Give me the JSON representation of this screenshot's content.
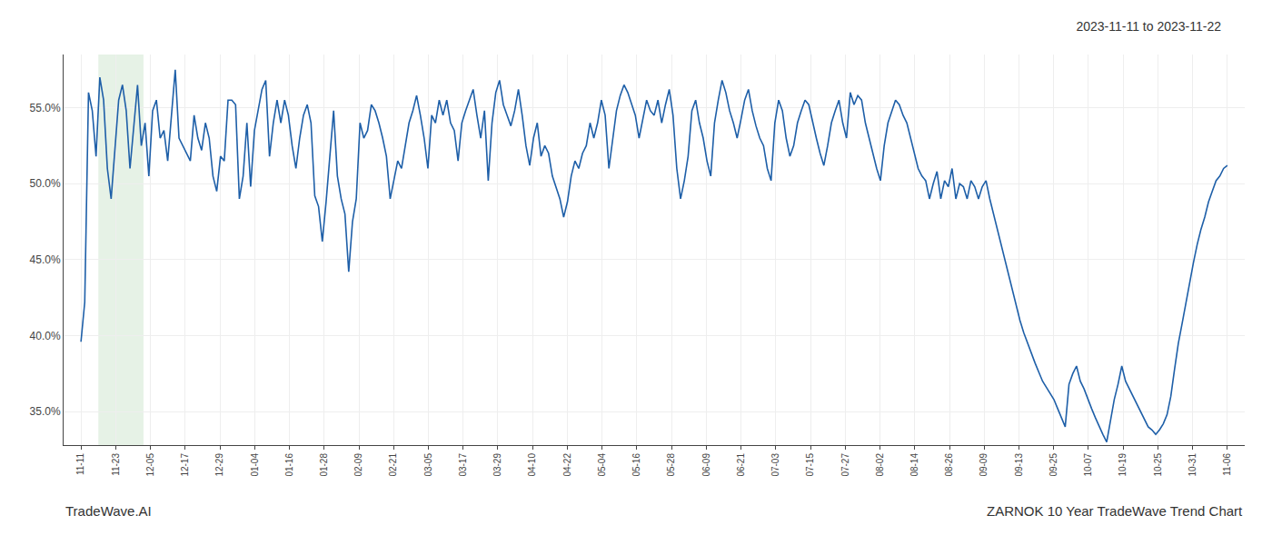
{
  "chart_data": {
    "type": "line",
    "title": "2023-11-11 to 2023-11-22",
    "annotations": [
      {
        "text": "TradeWave.AI"
      },
      {
        "text": "ZARNOK 10 Year TradeWave Trend Chart"
      }
    ],
    "color": "#1e5fa8",
    "grid": true,
    "highlight": {
      "start": 0.5,
      "end": 1.8,
      "color": "#d6ead6"
    },
    "xlim": [
      -0.5,
      33.5
    ],
    "xticks": [
      {
        "value": 0,
        "label": "11-11"
      },
      {
        "value": 1,
        "label": "11-23"
      },
      {
        "value": 2,
        "label": "12-05"
      },
      {
        "value": 3,
        "label": "12-17"
      },
      {
        "value": 4,
        "label": "12-29"
      },
      {
        "value": 5,
        "label": "01-04"
      },
      {
        "value": 6,
        "label": "01-16"
      },
      {
        "value": 7,
        "label": "01-28"
      },
      {
        "value": 8,
        "label": "02-09"
      },
      {
        "value": 9,
        "label": "02-21"
      },
      {
        "value": 10,
        "label": "03-05"
      },
      {
        "value": 11,
        "label": "03-17"
      },
      {
        "value": 12,
        "label": "03-29"
      },
      {
        "value": 13,
        "label": "04-10"
      },
      {
        "value": 14,
        "label": "04-22"
      },
      {
        "value": 15,
        "label": "05-04"
      },
      {
        "value": 16,
        "label": "05-16"
      },
      {
        "value": 17,
        "label": "05-28"
      },
      {
        "value": 18,
        "label": "06-09"
      },
      {
        "value": 19,
        "label": "06-21"
      },
      {
        "value": 20,
        "label": "07-03"
      },
      {
        "value": 21,
        "label": "07-15"
      },
      {
        "value": 22,
        "label": "07-27"
      },
      {
        "value": 23,
        "label": "08-02"
      },
      {
        "value": 24,
        "label": "08-14"
      },
      {
        "value": 25,
        "label": "08-26"
      },
      {
        "value": 26,
        "label": "09-09"
      },
      {
        "value": 27,
        "label": "09-13"
      },
      {
        "value": 28,
        "label": "09-25"
      },
      {
        "value": 29,
        "label": "10-07"
      },
      {
        "value": 30,
        "label": "10-19"
      },
      {
        "value": 31,
        "label": "10-25"
      },
      {
        "value": 32,
        "label": "10-31"
      },
      {
        "value": 33,
        "label": "11-06"
      }
    ],
    "ylim": [
      0.328,
      0.585
    ],
    "yticks": [
      {
        "value": 0.35,
        "label": "35.0%"
      },
      {
        "value": 0.4,
        "label": "40.0%"
      },
      {
        "value": 0.45,
        "label": "45.0%"
      },
      {
        "value": 0.5,
        "label": "50.0%"
      },
      {
        "value": 0.55,
        "label": "55.0%"
      }
    ],
    "values": [
      0.396,
      0.422,
      0.56,
      0.548,
      0.518,
      0.57,
      0.555,
      0.51,
      0.49,
      0.52,
      0.555,
      0.565,
      0.548,
      0.51,
      0.54,
      0.565,
      0.525,
      0.54,
      0.505,
      0.548,
      0.555,
      0.53,
      0.535,
      0.515,
      0.545,
      0.575,
      0.53,
      0.525,
      0.52,
      0.515,
      0.545,
      0.53,
      0.522,
      0.54,
      0.53,
      0.505,
      0.495,
      0.518,
      0.515,
      0.555,
      0.555,
      0.552,
      0.49,
      0.505,
      0.54,
      0.498,
      0.535,
      0.548,
      0.562,
      0.568,
      0.518,
      0.54,
      0.555,
      0.54,
      0.555,
      0.545,
      0.525,
      0.51,
      0.53,
      0.545,
      0.552,
      0.54,
      0.492,
      0.485,
      0.462,
      0.488,
      0.52,
      0.548,
      0.505,
      0.49,
      0.48,
      0.442,
      0.475,
      0.49,
      0.54,
      0.53,
      0.535,
      0.552,
      0.548,
      0.54,
      0.53,
      0.518,
      0.49,
      0.502,
      0.515,
      0.51,
      0.525,
      0.54,
      0.548,
      0.558,
      0.545,
      0.53,
      0.51,
      0.545,
      0.54,
      0.555,
      0.545,
      0.555,
      0.54,
      0.535,
      0.515,
      0.54,
      0.548,
      0.555,
      0.562,
      0.545,
      0.53,
      0.548,
      0.502,
      0.54,
      0.56,
      0.568,
      0.552,
      0.545,
      0.538,
      0.548,
      0.562,
      0.545,
      0.525,
      0.512,
      0.53,
      0.54,
      0.518,
      0.525,
      0.52,
      0.505,
      0.498,
      0.49,
      0.478,
      0.488,
      0.505,
      0.515,
      0.51,
      0.52,
      0.525,
      0.54,
      0.53,
      0.54,
      0.555,
      0.545,
      0.51,
      0.53,
      0.548,
      0.558,
      0.565,
      0.56,
      0.552,
      0.545,
      0.53,
      0.542,
      0.555,
      0.548,
      0.545,
      0.555,
      0.54,
      0.552,
      0.562,
      0.545,
      0.51,
      0.49,
      0.502,
      0.518,
      0.548,
      0.555,
      0.54,
      0.53,
      0.515,
      0.505,
      0.54,
      0.555,
      0.568,
      0.56,
      0.548,
      0.54,
      0.53,
      0.542,
      0.555,
      0.562,
      0.548,
      0.538,
      0.53,
      0.525,
      0.51,
      0.502,
      0.54,
      0.555,
      0.548,
      0.53,
      0.518,
      0.525,
      0.54,
      0.548,
      0.555,
      0.552,
      0.54,
      0.53,
      0.52,
      0.512,
      0.525,
      0.54,
      0.548,
      0.555,
      0.54,
      0.53,
      0.56,
      0.552,
      0.558,
      0.555,
      0.54,
      0.53,
      0.52,
      0.51,
      0.502,
      0.525,
      0.54,
      0.548,
      0.555,
      0.552,
      0.545,
      0.54,
      0.53,
      0.52,
      0.51,
      0.505,
      0.502,
      0.49,
      0.5,
      0.508,
      0.49,
      0.502,
      0.498,
      0.51,
      0.49,
      0.5,
      0.498,
      0.49,
      0.502,
      0.498,
      0.49,
      0.498,
      0.502,
      0.49,
      0.48,
      0.47,
      0.46,
      0.45,
      0.44,
      0.43,
      0.42,
      0.41,
      0.402,
      0.395,
      0.388,
      0.382,
      0.376,
      0.37,
      0.366,
      0.362,
      0.358,
      0.352,
      0.346,
      0.34,
      0.368,
      0.375,
      0.38,
      0.37,
      0.365,
      0.358,
      0.352,
      0.346,
      0.34,
      0.335,
      0.33,
      0.345,
      0.358,
      0.368,
      0.38,
      0.37,
      0.365,
      0.36,
      0.355,
      0.35,
      0.345,
      0.34,
      0.338,
      0.335,
      0.338,
      0.342,
      0.348,
      0.36,
      0.378,
      0.395,
      0.408,
      0.422,
      0.435,
      0.448,
      0.46,
      0.47,
      0.478,
      0.488,
      0.495,
      0.502,
      0.505,
      0.51,
      0.512
    ]
  }
}
